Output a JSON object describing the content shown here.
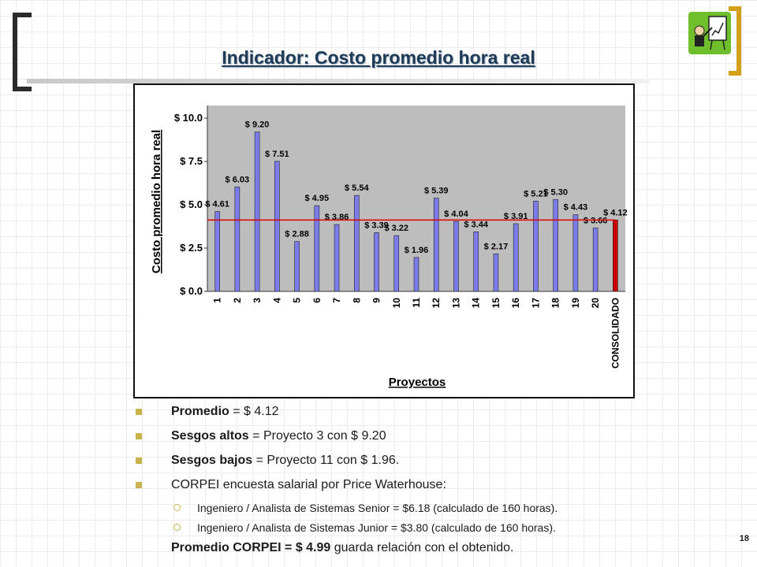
{
  "slide": {
    "title": "Indicador: Costo promedio hora real",
    "page_number": "18"
  },
  "chart_data": {
    "type": "bar",
    "ylabel": "Costo promedio hora real",
    "xlabel": "Proyectos",
    "ylim": [
      0,
      10.0
    ],
    "yticks": [
      "$ 0.0",
      "$ 2.5",
      "$ 5.0",
      "$ 7.5",
      "$ 10.0"
    ],
    "categories": [
      "1",
      "2",
      "3",
      "4",
      "5",
      "6",
      "7",
      "8",
      "9",
      "10",
      "11",
      "12",
      "13",
      "14",
      "15",
      "16",
      "17",
      "18",
      "19",
      "20",
      "CONSOLIDADO"
    ],
    "values": [
      4.61,
      6.03,
      9.2,
      7.51,
      2.88,
      4.95,
      3.86,
      5.54,
      3.39,
      3.22,
      1.96,
      5.39,
      4.04,
      3.44,
      2.17,
      3.91,
      5.21,
      5.3,
      4.43,
      3.66,
      4.12
    ],
    "labels": [
      "$ 4.61",
      "$ 6.03",
      "$ 9.20",
      "$ 7.51",
      "$ 2.88",
      "$ 4.95",
      "$ 3.86",
      "$ 5.54",
      "$ 3.39",
      "$ 3.22",
      "$ 1.96",
      "$ 5.39",
      "$ 4.04",
      "$ 3.44",
      "$ 2.17",
      "$ 3.91",
      "$ 5.21",
      "$ 5.30",
      "$ 4.43",
      "$ 3.66",
      "$ 4.12"
    ],
    "average_line": 4.12,
    "colors": {
      "bar": "#7b7bea",
      "consolidado": "#cc0000",
      "line": "#dd0000",
      "plot_bg": "#bdbdbd"
    }
  },
  "bullets": {
    "b1_bold": "Promedio",
    "b1_rest": " = $ 4.12",
    "b2_bold": "Sesgos altos",
    "b2_rest": " = Proyecto 3 con $ 9.20",
    "b3_bold": "Sesgos bajos",
    "b3_rest": " = Proyecto 11 con $ 1.96.",
    "b4": "CORPEI encuesta salarial por Price Waterhouse:",
    "sub1": "Ingeniero / Analista de Sistemas Senior = $6.18 (calculado de 160 horas).",
    "sub2": "Ingeniero / Analista de Sistemas Junior = $3.80 (calculado de 160 horas).",
    "final_bold": "Promedio CORPEI = $ 4.99",
    "final_rest": " guarda relación con el obtenido."
  },
  "icons": {
    "clipart": "presenter-with-chart-icon"
  }
}
